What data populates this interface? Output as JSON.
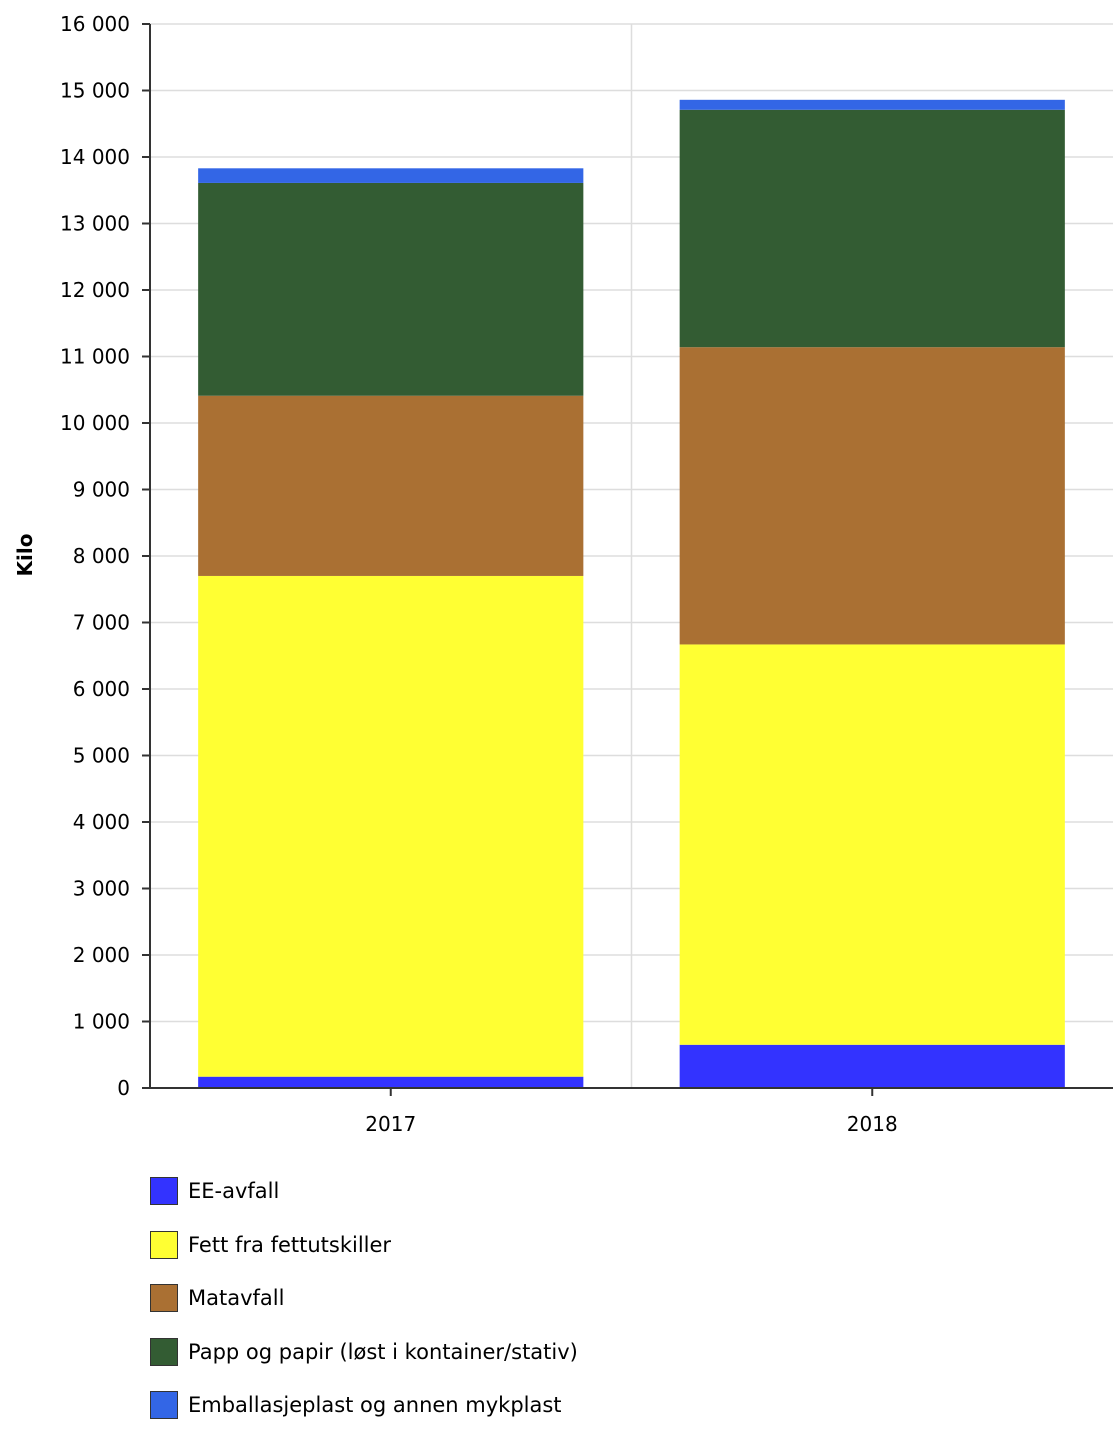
{
  "chart_data": {
    "type": "bar",
    "stacked": true,
    "categories": [
      "2017",
      "2018"
    ],
    "ylabel": "Kilo",
    "ylim": [
      0,
      16000
    ],
    "yticks": [
      0,
      1000,
      2000,
      3000,
      4000,
      5000,
      6000,
      7000,
      8000,
      9000,
      10000,
      11000,
      12000,
      13000,
      14000,
      15000,
      16000
    ],
    "ytick_labels": [
      "0",
      "1 000",
      "2 000",
      "3 000",
      "4 000",
      "5 000",
      "6 000",
      "7 000",
      "8 000",
      "9 000",
      "10 000",
      "11 000",
      "12 000",
      "13 000",
      "14 000",
      "15 000",
      "16 000"
    ],
    "grid": true,
    "legend_position": "bottom-left",
    "series": [
      {
        "name": "EE-avfall",
        "color": "#3333ff",
        "values": [
          170,
          650
        ]
      },
      {
        "name": "Fett fra fettutskiller",
        "color": "#ffff33",
        "values": [
          7530,
          6020
        ]
      },
      {
        "name": "Matavfall",
        "color": "#aa7033",
        "values": [
          2710,
          4470
        ]
      },
      {
        "name": "Papp og papir (løst i kontainer/stativ)",
        "color": "#335c33",
        "values": [
          3200,
          3570
        ]
      },
      {
        "name": "Emballasjeplast og annen mykplast",
        "color": "#3366e6",
        "values": [
          220,
          150
        ]
      }
    ]
  }
}
